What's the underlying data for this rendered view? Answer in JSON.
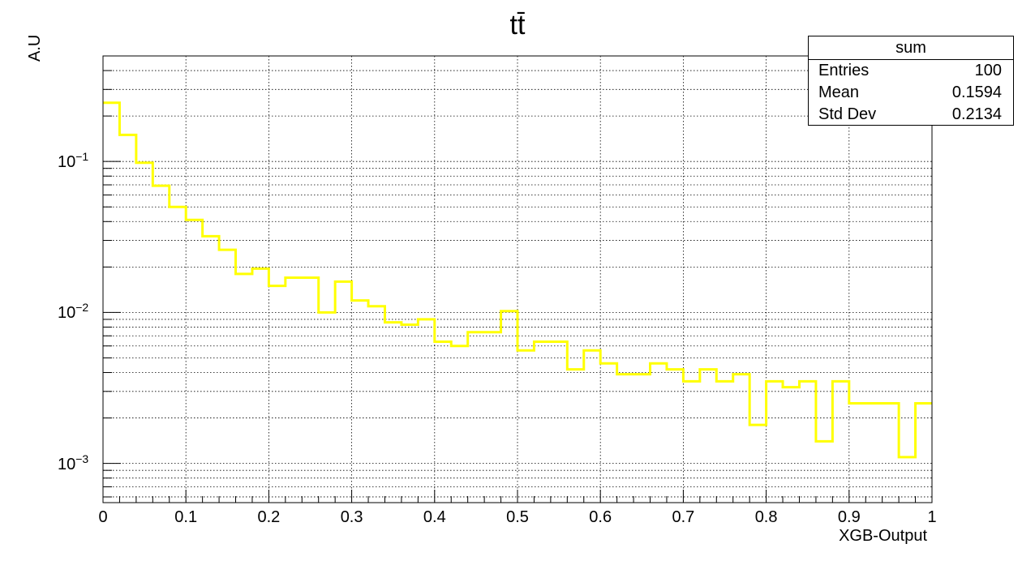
{
  "chart_data": {
    "type": "histogram",
    "title": "tt̄",
    "xlabel": "XGB-Output",
    "ylabel": "A.U",
    "xlim": [
      0,
      1
    ],
    "ylim": [
      0.00055,
      0.5
    ],
    "yscale": "log",
    "grid": true,
    "line_color": "#ffff00",
    "x_ticks": [
      "0",
      "0.1",
      "0.2",
      "0.3",
      "0.4",
      "0.5",
      "0.6",
      "0.7",
      "0.8",
      "0.9",
      "1"
    ],
    "y_ticks": [
      {
        "base": "10",
        "exp": "−1",
        "value": 0.1
      },
      {
        "base": "10",
        "exp": "−2",
        "value": 0.01
      },
      {
        "base": "10",
        "exp": "−3",
        "value": 0.001
      }
    ],
    "bin_edges": [
      0,
      0.02,
      0.04,
      0.06,
      0.08,
      0.1,
      0.12,
      0.14,
      0.16,
      0.18,
      0.2,
      0.22,
      0.24,
      0.26,
      0.28,
      0.3,
      0.32,
      0.34,
      0.36,
      0.38,
      0.4,
      0.42,
      0.44,
      0.46,
      0.48,
      0.5,
      0.52,
      0.54,
      0.56,
      0.58,
      0.6,
      0.62,
      0.64,
      0.66,
      0.68,
      0.7,
      0.72,
      0.74,
      0.76,
      0.78,
      0.8,
      0.82,
      0.84,
      0.86,
      0.88,
      0.9,
      0.92,
      0.94,
      0.96,
      0.98,
      1.0
    ],
    "values": [
      0.245,
      0.15,
      0.098,
      0.069,
      0.05,
      0.041,
      0.032,
      0.026,
      0.018,
      0.0195,
      0.015,
      0.017,
      0.017,
      0.01,
      0.016,
      0.012,
      0.011,
      0.0086,
      0.0083,
      0.009,
      0.0064,
      0.006,
      0.0074,
      0.0074,
      0.0102,
      0.0056,
      0.0064,
      0.0064,
      0.0042,
      0.0056,
      0.0046,
      0.0039,
      0.0039,
      0.0046,
      0.0042,
      0.0035,
      0.0042,
      0.0035,
      0.0039,
      0.0018,
      0.0035,
      0.0032,
      0.0035,
      0.0014,
      0.0035,
      0.0025,
      0.0025,
      0.0025,
      0.0011,
      0.0025
    ]
  },
  "stats": {
    "title": "sum",
    "rows": [
      {
        "label": "Entries",
        "value": "100"
      },
      {
        "label": "Mean",
        "value": "0.1594"
      },
      {
        "label": "Std Dev",
        "value": "0.2134"
      }
    ]
  }
}
